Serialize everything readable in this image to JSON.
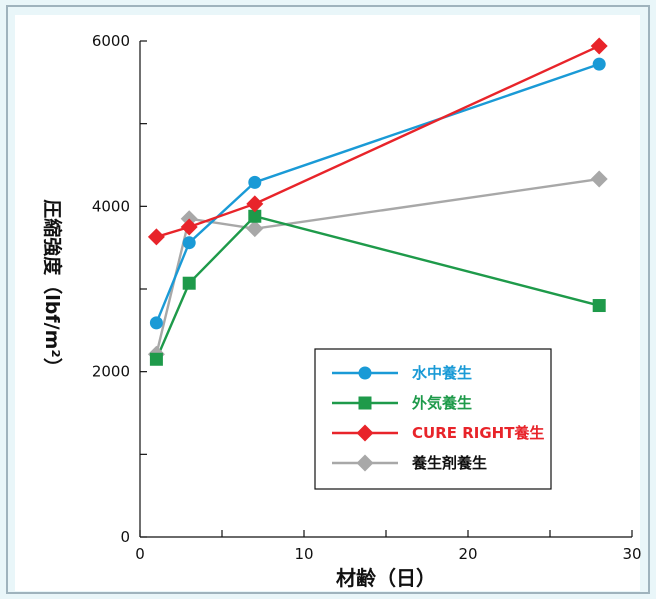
{
  "chart_data": {
    "type": "line",
    "xlabel": "材齢（日）",
    "ylabel": "圧縮強度（lbf/m²）",
    "xlim": [
      0,
      30
    ],
    "ylim": [
      0,
      6000
    ],
    "x_ticks": [
      "0",
      "10",
      "20",
      "30"
    ],
    "y_ticks": [
      "0",
      "2000",
      "4000",
      "6000"
    ],
    "x": [
      1,
      3,
      7,
      28
    ],
    "grid": false,
    "legend_placement": "bottom-right",
    "series": [
      {
        "name": "水中養生",
        "values": [
          2590,
          3560,
          4290,
          5720
        ],
        "color": "#1a9ad6",
        "marker": "circle"
      },
      {
        "name": "外気養生",
        "values": [
          2150,
          3070,
          3880,
          2800
        ],
        "color": "#1e9a4a",
        "marker": "square"
      },
      {
        "name": "CURE RIGHT養生",
        "values": [
          3630,
          3750,
          4030,
          5940
        ],
        "color": "#e8242a",
        "marker": "diamond"
      },
      {
        "name": "養生剤養生",
        "values": [
          2210,
          3850,
          3730,
          4330
        ],
        "color": "#a8a8a8",
        "marker": "diamond"
      }
    ]
  }
}
